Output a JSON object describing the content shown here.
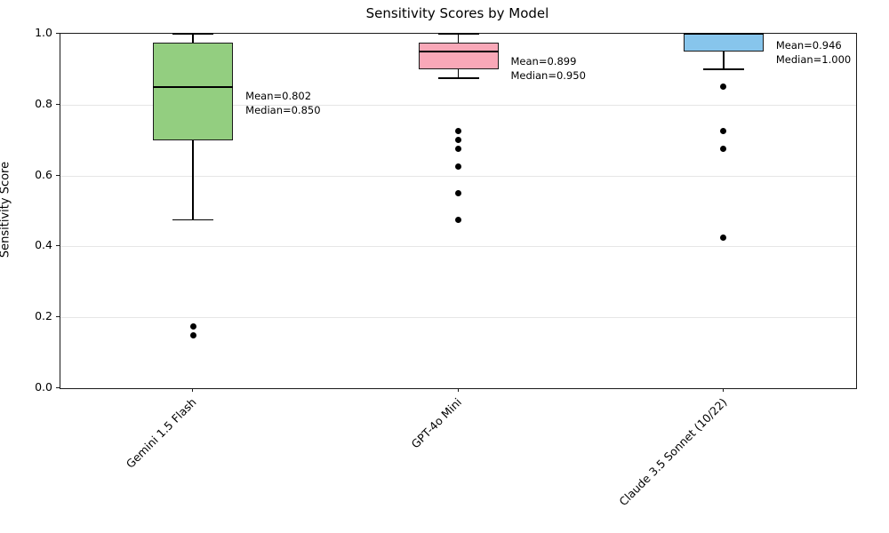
{
  "chart_data": {
    "type": "box",
    "title": "Sensitivity Scores by Model",
    "xlabel": "",
    "ylabel": "Sensitivity Score",
    "ylim": [
      0.0,
      1.0
    ],
    "grid": true,
    "grid_color": "#e6e6e6",
    "edge_color": "#1a1a1a",
    "outlier_color": "#000000",
    "yticks": [
      {
        "value": 0.0,
        "label": "0.0"
      },
      {
        "value": 0.2,
        "label": "0.2"
      },
      {
        "value": 0.4,
        "label": "0.4"
      },
      {
        "value": 0.6,
        "label": "0.6"
      },
      {
        "value": 0.8,
        "label": "0.8"
      },
      {
        "value": 1.0,
        "label": "1.0"
      }
    ],
    "categories": [
      "Gemini 1.5 Flash",
      "GPT-4o Mini",
      "Claude 3.5 Sonnet (10/22)"
    ],
    "series": [
      {
        "label": "Gemini 1.5 Flash",
        "box_color": "#93ce80",
        "whisker_low": 0.475,
        "q1": 0.7,
        "median": 0.85,
        "q3": 0.975,
        "whisker_high": 1.0,
        "outliers": [
          0.175,
          0.15
        ],
        "mean": 0.802,
        "annotation_lines": [
          "Mean=0.802",
          "Median=0.850"
        ]
      },
      {
        "label": "GPT-4o Mini",
        "box_color": "#f9a8b8",
        "whisker_low": 0.875,
        "q1": 0.9,
        "median": 0.95,
        "q3": 0.975,
        "whisker_high": 1.0,
        "outliers": [
          0.725,
          0.7,
          0.675,
          0.625,
          0.55,
          0.475
        ],
        "mean": 0.899,
        "annotation_lines": [
          "Mean=0.899",
          "Median=0.950"
        ]
      },
      {
        "label": "Claude 3.5 Sonnet (10/22)",
        "box_color": "#87c5ec",
        "whisker_low": 0.9,
        "q1": 0.95,
        "median": 1.0,
        "q3": 1.0,
        "whisker_high": 1.0,
        "outliers": [
          0.85,
          0.725,
          0.675,
          0.425
        ],
        "mean": 0.946,
        "annotation_lines": [
          "Mean=0.946",
          "Median=1.000"
        ]
      }
    ]
  }
}
